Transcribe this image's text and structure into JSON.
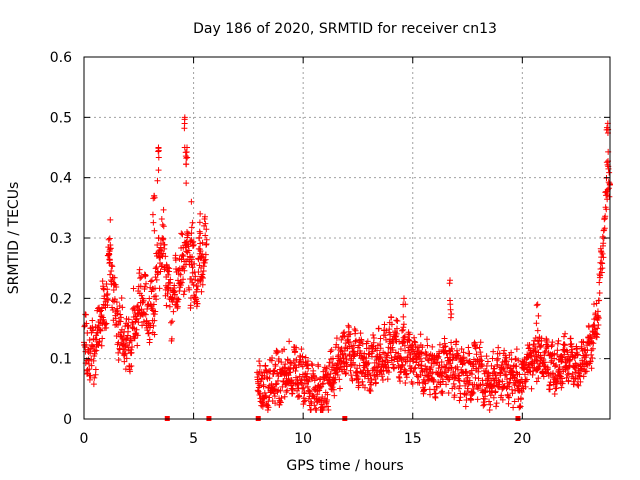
{
  "chart_data": {
    "type": "scatter",
    "title": "Day 186 of 2020, SRMTID for receiver cn13",
    "xlabel": "GPS time / hours",
    "ylabel": "SRMTID / TECUs",
    "xlim": [
      0,
      24
    ],
    "ylim": [
      0,
      0.6
    ],
    "xticks": [
      0,
      5,
      10,
      15,
      20
    ],
    "yticks": [
      0,
      0.1,
      0.2,
      0.3,
      0.4,
      0.5,
      0.6
    ],
    "grid": true,
    "marker": "+",
    "color": "#ff0000",
    "series": [
      {
        "name": "SRMTID",
        "segments": [
          {
            "x_start": 0.0,
            "x_end": 5.6,
            "step": 0.01,
            "trend": [
              [
                0.0,
                0.12
              ],
              [
                0.3,
                0.1
              ],
              [
                0.6,
                0.13
              ],
              [
                1.0,
                0.2
              ],
              [
                1.2,
                0.27
              ],
              [
                1.4,
                0.18
              ],
              [
                1.7,
                0.14
              ],
              [
                2.0,
                0.12
              ],
              [
                2.3,
                0.16
              ],
              [
                2.6,
                0.2
              ],
              [
                2.9,
                0.17
              ],
              [
                3.2,
                0.19
              ],
              [
                3.4,
                0.26
              ],
              [
                3.6,
                0.3
              ],
              [
                3.8,
                0.22
              ],
              [
                4.0,
                0.18
              ],
              [
                4.3,
                0.23
              ],
              [
                4.6,
                0.27
              ],
              [
                4.9,
                0.24
              ],
              [
                5.1,
                0.22
              ],
              [
                5.3,
                0.26
              ],
              [
                5.6,
                0.28
              ]
            ],
            "spread": 0.055
          },
          {
            "x_start": 7.9,
            "x_end": 20.0,
            "step": 0.01,
            "trend": [
              [
                7.9,
                0.05
              ],
              [
                8.5,
                0.06
              ],
              [
                9.0,
                0.07
              ],
              [
                9.5,
                0.08
              ],
              [
                10.0,
                0.07
              ],
              [
                10.5,
                0.05
              ],
              [
                11.0,
                0.045
              ],
              [
                11.5,
                0.09
              ],
              [
                12.0,
                0.11
              ],
              [
                12.5,
                0.1
              ],
              [
                13.0,
                0.09
              ],
              [
                13.5,
                0.1
              ],
              [
                14.0,
                0.12
              ],
              [
                14.5,
                0.11
              ],
              [
                15.0,
                0.1
              ],
              [
                15.5,
                0.09
              ],
              [
                16.0,
                0.08
              ],
              [
                16.5,
                0.09
              ],
              [
                17.0,
                0.08
              ],
              [
                17.5,
                0.07
              ],
              [
                18.0,
                0.08
              ],
              [
                18.5,
                0.06
              ],
              [
                19.0,
                0.07
              ],
              [
                19.5,
                0.07
              ],
              [
                20.0,
                0.06
              ]
            ],
            "spread": 0.045
          },
          {
            "x_start": 20.0,
            "x_end": 24.0,
            "step": 0.01,
            "trend": [
              [
                20.0,
                0.07
              ],
              [
                20.5,
                0.1
              ],
              [
                21.0,
                0.1
              ],
              [
                21.5,
                0.08
              ],
              [
                22.0,
                0.1
              ],
              [
                22.5,
                0.08
              ],
              [
                22.9,
                0.1
              ],
              [
                23.2,
                0.13
              ],
              [
                23.5,
                0.2
              ],
              [
                23.7,
                0.3
              ],
              [
                23.9,
                0.4
              ],
              [
                24.0,
                0.42
              ]
            ],
            "spread": 0.04
          }
        ],
        "peaks": [
          [
            1.2,
            0.33
          ],
          [
            3.2,
            0.37
          ],
          [
            3.4,
            0.45
          ],
          [
            4.6,
            0.5
          ],
          [
            4.7,
            0.45
          ],
          [
            4.9,
            0.36
          ],
          [
            5.3,
            0.34
          ],
          [
            14.6,
            0.2
          ],
          [
            16.7,
            0.23
          ],
          [
            20.7,
            0.19
          ],
          [
            23.9,
            0.49
          ]
        ]
      }
    ],
    "gap_markers": [
      3.8,
      5.7,
      7.95,
      11.9,
      19.8
    ]
  }
}
